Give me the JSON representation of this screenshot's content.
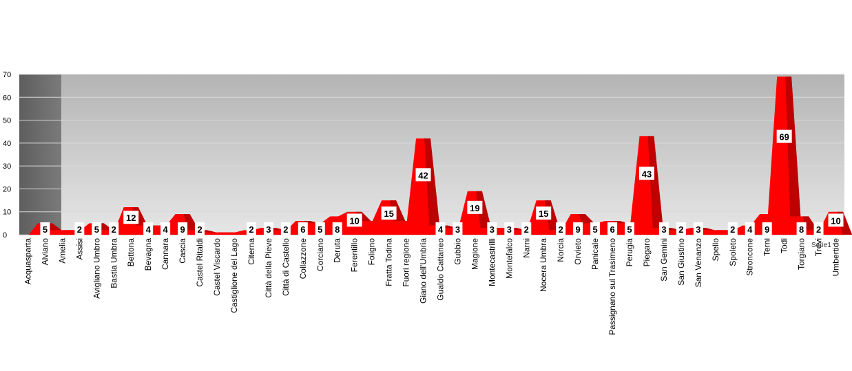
{
  "chart_data": {
    "type": "area",
    "categories": [
      "Acquasparta",
      "Alviano",
      "Amelia",
      "Assisi",
      "Avigliano Umbro",
      "Bastia Umbra",
      "Bettona",
      "Bevagna",
      "Cannara",
      "Cascia",
      "Castel Ritaldi",
      "Castel Viscardo",
      "Castiglione del Lago",
      "Citerna",
      "Città della Pieve",
      "Città di Castello",
      "Collazzone",
      "Corciano",
      "Deruta",
      "Ferentillo",
      "Foligno",
      "Fratta Todina",
      "Fuori regione",
      "Giano dell'Umbria",
      "Gualdo Cattaneo",
      "Gubbio",
      "Magione",
      "Montecastrilli",
      "Montefalco",
      "Narni",
      "Nocera Umbra",
      "Norcia",
      "Orvieto",
      "Panicale",
      "Passignano sul Trasimeno",
      "Perugia",
      "Piegaro",
      "San Gemini",
      "San Giustino",
      "San Venanzo",
      "Spello",
      "Spoleto",
      "Stroncone",
      "Terni",
      "Todi",
      "Torgiano",
      "Trevi",
      "Umbertide"
    ],
    "series": [
      {
        "name": "Serie1",
        "values": [
          0,
          5,
          2,
          2,
          5,
          2,
          12,
          4,
          4,
          9,
          2,
          1,
          1,
          2,
          3,
          2,
          6,
          5,
          8,
          10,
          6,
          15,
          6,
          42,
          4,
          3,
          19,
          3,
          3,
          2,
          15,
          2,
          9,
          5,
          6,
          5,
          43,
          3,
          2,
          3,
          2,
          2,
          4,
          9,
          69,
          8,
          2,
          10
        ]
      }
    ],
    "data_labels": [
      "",
      "5",
      "",
      "2",
      "5",
      "2",
      "12",
      "4",
      "4",
      "9",
      "2",
      "",
      "",
      "2",
      "3",
      "2",
      "6",
      "5",
      "8",
      "10",
      "",
      "15",
      "",
      "42",
      "4",
      "3",
      "19",
      "3",
      "3",
      "2",
      "15",
      "2",
      "9",
      "5",
      "6",
      "5",
      "43",
      "3",
      "2",
      "3",
      "",
      "2",
      "4",
      "9",
      "69",
      "8",
      "2",
      "10"
    ],
    "yticks": [
      "0",
      "10",
      "20",
      "30",
      "40",
      "50",
      "60",
      "70"
    ],
    "ylim": [
      0,
      70
    ],
    "title": "",
    "xlabel": "",
    "ylabel": "",
    "grid": true,
    "legend": "none",
    "colors": {
      "fill": "#ff0000",
      "shade": "#b30000",
      "wall_dark": "#6e6e6e",
      "wall_top": "#b4b4b4",
      "wall_bottom": "#e6e6e6",
      "grid": "#d9d9d9",
      "label_bg": "#ffffff"
    }
  }
}
